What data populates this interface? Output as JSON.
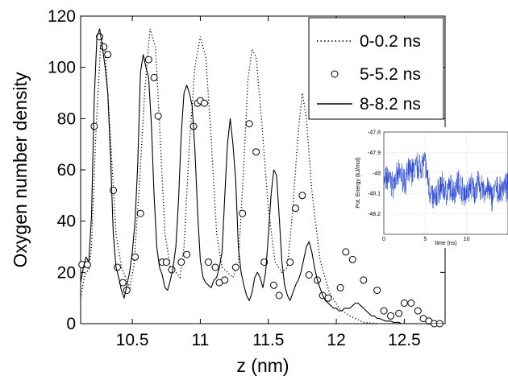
{
  "chart_data": [
    {
      "type": "line",
      "xlabel": "z (nm)",
      "ylabel": "Oxygen number density",
      "xlim": [
        10.12,
        12.8
      ],
      "ylim": [
        0,
        120
      ],
      "x_ticks": [
        "10.5",
        "11",
        "11.5",
        "12",
        "12.5"
      ],
      "y_ticks": [
        "0",
        "20",
        "40",
        "60",
        "80",
        "100",
        "120"
      ],
      "grid": false,
      "legend_position": "top-right",
      "series": [
        {
          "name": "0-0.2 ns",
          "style": "dotted",
          "x": [
            10.12,
            10.15,
            10.18,
            10.2,
            10.23,
            10.27,
            10.3,
            10.34,
            10.38,
            10.42,
            10.45,
            10.48,
            10.51,
            10.55,
            10.59,
            10.63,
            10.67,
            10.7,
            10.74,
            10.78,
            10.82,
            10.85,
            10.88,
            10.92,
            10.96,
            11.0,
            11.04,
            11.08,
            11.12,
            11.16,
            11.2,
            11.24,
            11.28,
            11.32,
            11.35,
            11.38,
            11.41,
            11.45,
            11.5,
            11.55,
            11.6,
            11.64,
            11.68,
            11.72,
            11.75,
            11.78,
            11.82,
            11.88,
            11.95,
            12.02,
            12.1,
            12.2,
            12.3
          ],
          "values": [
            10,
            19,
            21,
            30,
            72,
            112,
            106,
            72,
            35,
            22,
            18,
            14,
            22,
            52,
            90,
            115,
            108,
            78,
            35,
            22,
            20,
            18,
            30,
            70,
            100,
            112,
            104,
            72,
            35,
            22,
            20,
            18,
            24,
            62,
            95,
            107,
            104,
            80,
            45,
            24,
            20,
            22,
            45,
            75,
            90,
            80,
            52,
            25,
            12,
            6,
            3,
            0.5,
            0
          ]
        },
        {
          "name": "5-5.2 ns",
          "style": "circles",
          "x": [
            10.13,
            10.17,
            10.22,
            10.26,
            10.29,
            10.32,
            10.36,
            10.39,
            10.43,
            10.46,
            10.52,
            10.56,
            10.62,
            10.66,
            10.69,
            10.72,
            10.75,
            10.79,
            10.86,
            10.9,
            10.95,
            10.98,
            11.0,
            11.03,
            11.06,
            11.11,
            11.14,
            11.18,
            11.26,
            11.31,
            11.36,
            11.41,
            11.47,
            11.54,
            11.58,
            11.66,
            11.7,
            11.75,
            11.8,
            11.86,
            11.9,
            11.94,
            12.03,
            12.07,
            12.12,
            12.2,
            12.3,
            12.35,
            12.4,
            12.46,
            12.5,
            12.55,
            12.6,
            12.64,
            12.68,
            12.72,
            12.76
          ],
          "values": [
            23,
            23,
            77,
            112,
            108,
            105,
            52,
            22,
            16,
            13,
            26,
            43,
            103,
            96,
            81,
            24,
            24,
            21,
            24,
            27,
            77,
            86,
            87,
            86,
            24,
            22,
            16,
            17,
            22,
            43,
            78,
            67,
            24,
            15,
            11,
            24,
            45,
            50,
            19,
            17,
            11,
            10,
            14,
            28,
            25,
            17,
            13,
            5,
            3,
            4,
            8,
            8,
            5,
            2,
            1,
            0,
            0
          ]
        },
        {
          "name": "8-8.2 ns",
          "style": "solid",
          "x": [
            10.12,
            10.14,
            10.16,
            10.18,
            10.2,
            10.22,
            10.24,
            10.26,
            10.28,
            10.3,
            10.32,
            10.34,
            10.36,
            10.38,
            10.4,
            10.42,
            10.44,
            10.46,
            10.48,
            10.5,
            10.52,
            10.54,
            10.56,
            10.58,
            10.6,
            10.62,
            10.64,
            10.66,
            10.68,
            10.7,
            10.72,
            10.74,
            10.76,
            10.78,
            10.8,
            10.82,
            10.84,
            10.86,
            10.88,
            10.9,
            10.92,
            10.94,
            10.96,
            10.98,
            11.0,
            11.02,
            11.04,
            11.06,
            11.08,
            11.1,
            11.12,
            11.14,
            11.16,
            11.18,
            11.2,
            11.22,
            11.24,
            11.26,
            11.28,
            11.3,
            11.32,
            11.34,
            11.36,
            11.38,
            11.4,
            11.42,
            11.44,
            11.46,
            11.48,
            11.5,
            11.52,
            11.54,
            11.56,
            11.58,
            11.6,
            11.62,
            11.64,
            11.66,
            11.68,
            11.7,
            11.72,
            11.74,
            11.76,
            11.78,
            11.8,
            11.82,
            11.84,
            11.86,
            11.88,
            11.9,
            11.92,
            11.94,
            11.96,
            11.98,
            12.0,
            12.02,
            12.04,
            12.06,
            12.08,
            12.1,
            12.12,
            12.14,
            12.16,
            12.18,
            12.2,
            12.22,
            12.24,
            12.26,
            12.28,
            12.3,
            12.32,
            12.34,
            12.36,
            12.38,
            12.4,
            12.42,
            12.44,
            12.46,
            12.48,
            12.5,
            12.52,
            12.54,
            12.56,
            12.58,
            12.6,
            12.62,
            12.64,
            12.66,
            12.68,
            12.7,
            12.72,
            12.74,
            12.76,
            12.78,
            12.8
          ],
          "values": [
            16,
            22,
            26,
            24,
            42,
            88,
            112,
            115,
            108,
            100,
            90,
            65,
            35,
            22,
            18,
            13,
            10,
            15,
            20,
            28,
            40,
            62,
            98,
            105,
            100,
            96,
            78,
            50,
            30,
            22,
            19,
            14,
            13,
            17,
            22,
            30,
            48,
            74,
            90,
            93,
            90,
            85,
            68,
            44,
            25,
            18,
            16,
            15,
            14,
            17,
            18,
            22,
            28,
            50,
            70,
            80,
            70,
            56,
            30,
            20,
            15,
            11,
            9,
            12,
            18,
            20,
            18,
            14,
            20,
            34,
            50,
            60,
            58,
            42,
            24,
            15,
            11,
            9,
            12,
            15,
            17,
            20,
            25,
            30,
            32,
            28,
            22,
            17,
            14,
            11,
            9,
            8,
            7,
            6,
            6,
            5,
            5,
            6,
            6,
            6,
            7,
            8,
            8,
            7,
            6,
            5,
            4,
            3,
            3,
            2,
            2,
            1.5,
            1,
            1,
            1,
            0.5,
            0.5,
            0.5,
            0,
            0,
            0,
            0,
            0,
            0,
            0,
            0,
            0,
            0,
            0,
            0,
            0,
            0,
            0,
            0,
            0
          ]
        }
      ]
    },
    {
      "type": "line",
      "xlabel": "time (ns)",
      "ylabel": "Pot. Energy (kJ/mol)",
      "xlim": [
        0,
        15
      ],
      "ylim": [
        -48.3,
        -47.8
      ],
      "x_ticks": [
        "0",
        "5",
        "10"
      ],
      "y_ticks": [
        "-47.8",
        "-47.9",
        "-48",
        "-48.1",
        "-48.2"
      ],
      "grid": true,
      "color": "#1f3fd6",
      "series": [
        {
          "x": [
            0,
            0.5,
            1,
            1.5,
            2,
            2.5,
            3,
            3.5,
            4,
            4.5,
            5,
            5.5,
            6,
            6.5,
            7,
            7.5,
            8,
            8.5,
            9,
            9.5,
            10,
            10.5,
            11,
            11.5,
            12,
            12.5,
            13,
            13.5,
            14,
            14.5,
            15
          ],
          "values": [
            -48.05,
            -48.02,
            -48.06,
            -48.03,
            -48.0,
            -48.04,
            -48.0,
            -47.99,
            -47.97,
            -47.96,
            -47.95,
            -48.08,
            -48.13,
            -48.1,
            -48.06,
            -48.1,
            -48.07,
            -48.09,
            -48.04,
            -48.08,
            -48.11,
            -48.06,
            -48.09,
            -48.05,
            -48.1,
            -48.07,
            -48.12,
            -48.08,
            -48.1,
            -48.06,
            -48.08
          ]
        }
      ]
    }
  ]
}
